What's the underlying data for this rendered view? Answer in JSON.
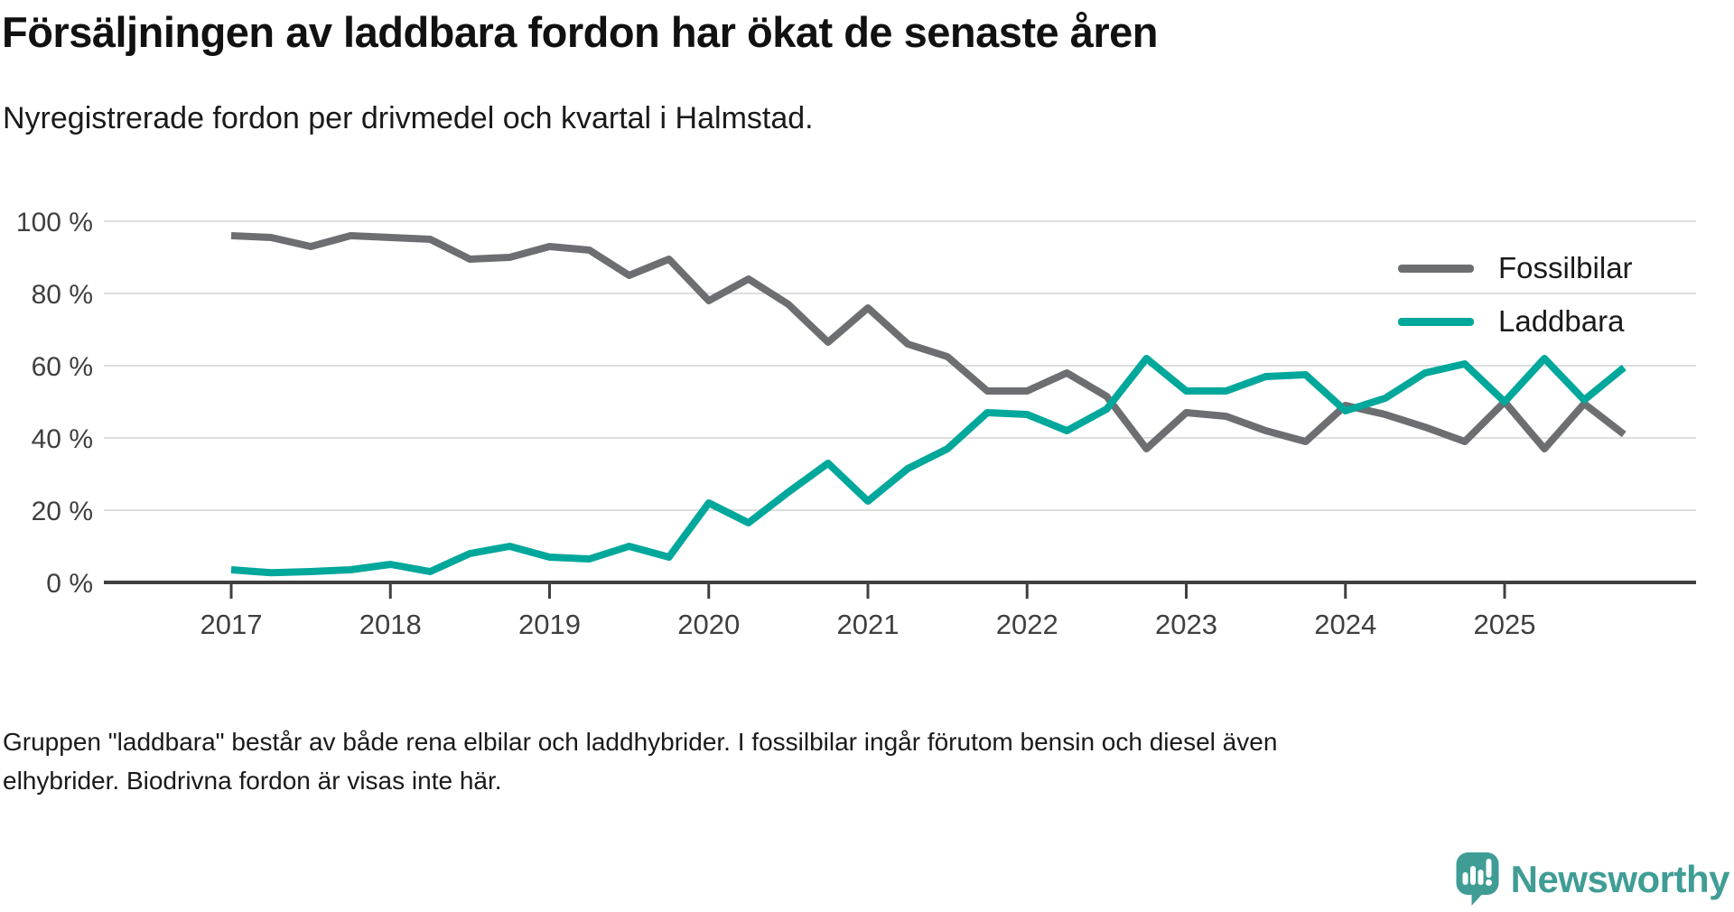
{
  "header": {
    "title": "Försäljningen av laddbara fordon har ökat de senaste åren",
    "subtitle": "Nyregistrerade fordon per drivmedel och kvartal i Halmstad."
  },
  "chart_data": {
    "type": "line",
    "x_unit": "quarter",
    "x_start": "2017-Q1",
    "x_end": "2025-Q4",
    "year_ticks": [
      "2017",
      "2018",
      "2019",
      "2020",
      "2021",
      "2022",
      "2023",
      "2024",
      "2025"
    ],
    "y_ticks": [
      {
        "value": 100,
        "label": "100 %"
      },
      {
        "value": 80,
        "label": "80 %"
      },
      {
        "value": 60,
        "label": "60 %"
      },
      {
        "value": 40,
        "label": "40 %"
      },
      {
        "value": 20,
        "label": "20 %"
      },
      {
        "value": 0,
        "label": "0 %"
      }
    ],
    "ylim": [
      0,
      100
    ],
    "grid": "horizontal",
    "legend_position": "top-right",
    "series": [
      {
        "name": "Fossilbilar",
        "color": "#6d6e71",
        "values": [
          96,
          95.5,
          93,
          96,
          95.5,
          95,
          89.5,
          90,
          93,
          92,
          85,
          89.5,
          78,
          84,
          77,
          66.5,
          76,
          66,
          62.5,
          53,
          53,
          58,
          51.5,
          37,
          47,
          46,
          42,
          39,
          49,
          46.5,
          43,
          39,
          50,
          37,
          49.5,
          41
        ]
      },
      {
        "name": "Laddbara",
        "color": "#00a79b",
        "values": [
          3.5,
          2.7,
          3,
          3.5,
          5,
          3,
          8,
          10,
          7,
          6.5,
          10,
          7,
          22,
          16.5,
          25,
          33,
          22.5,
          31.5,
          37,
          47,
          46.5,
          42,
          48,
          62,
          53,
          53,
          57,
          57.5,
          47.5,
          51,
          58,
          60.5,
          50,
          62,
          50.5,
          59.5
        ]
      }
    ],
    "axis_colors": {
      "grid": "#dedede",
      "axis": "#404040",
      "tick_label": "#3f3f3f"
    }
  },
  "footer": {
    "note_line1": "Gruppen \"laddbara\" består av både rena elbilar och laddhybrider. I fossilbilar ingår förutom bensin och diesel även",
    "note_line2": "elhybrider. Biodrivna fordon är visas inte här."
  },
  "branding": {
    "logo_text": "Newsworthy",
    "logo_color": "#3f9d95"
  }
}
